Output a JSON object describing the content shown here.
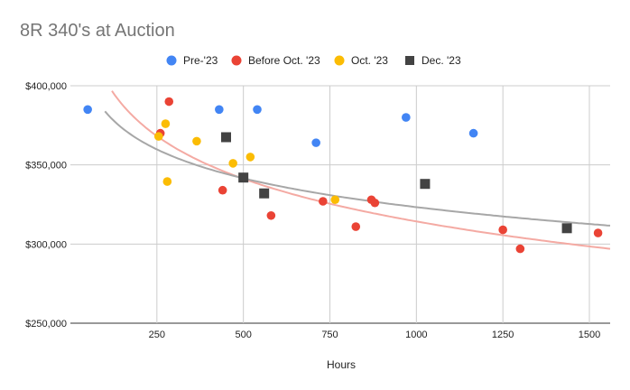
{
  "chart_data": {
    "type": "scatter",
    "title": "8R 340's at Auction",
    "xlabel": "Hours",
    "ylabel": "",
    "xlim": [
      0,
      1560
    ],
    "ylim": [
      250000,
      400000
    ],
    "x_ticks": [
      250,
      500,
      750,
      1000,
      1250,
      1500
    ],
    "x_tick_labels": [
      "250",
      "500",
      "750",
      "1000",
      "1250",
      "1500"
    ],
    "y_ticks": [
      250000,
      300000,
      350000,
      400000
    ],
    "y_tick_labels": [
      "$250,000",
      "$300,000",
      "$350,000",
      "$400,000"
    ],
    "grid": true,
    "legend_position": "top",
    "series": [
      {
        "name": "Pre-'23",
        "color": "#4285f4",
        "marker": "circle",
        "points": [
          [
            50,
            385000
          ],
          [
            430,
            385000
          ],
          [
            540,
            385000
          ],
          [
            710,
            364000
          ],
          [
            970,
            380000
          ],
          [
            1165,
            370000
          ]
        ]
      },
      {
        "name": "Before Oct. '23",
        "color": "#ea4335",
        "marker": "circle",
        "points": [
          [
            260,
            370000
          ],
          [
            285,
            390000
          ],
          [
            440,
            334000
          ],
          [
            580,
            318000
          ],
          [
            730,
            327000
          ],
          [
            825,
            311000
          ],
          [
            870,
            328000
          ],
          [
            880,
            326000
          ],
          [
            1250,
            309000
          ],
          [
            1300,
            297000
          ],
          [
            1525,
            307000
          ]
        ]
      },
      {
        "name": "Oct. '23",
        "color": "#fbbc04",
        "marker": "circle",
        "points": [
          [
            255,
            368000
          ],
          [
            275,
            376000
          ],
          [
            280,
            339500
          ],
          [
            365,
            365000
          ],
          [
            470,
            351000
          ],
          [
            520,
            355000
          ],
          [
            765,
            328000
          ]
        ]
      },
      {
        "name": "Dec. '23",
        "color": "#434343",
        "marker": "square",
        "points": [
          [
            450,
            367500
          ],
          [
            500,
            342000
          ],
          [
            560,
            332000
          ],
          [
            1025,
            338000
          ],
          [
            1435,
            310000
          ]
        ]
      }
    ],
    "trendlines": [
      {
        "series": "Before Oct. '23",
        "type": "logarithmic",
        "color": "#f4aaa3",
        "a": 583000,
        "b": -38900,
        "x_range": [
          120,
          1560
        ]
      },
      {
        "series": "Dec. '23",
        "type": "logarithmic",
        "color": "#a7a7a7",
        "a": 505000,
        "b": -26300,
        "x_range": [
          100,
          1560
        ]
      }
    ]
  }
}
